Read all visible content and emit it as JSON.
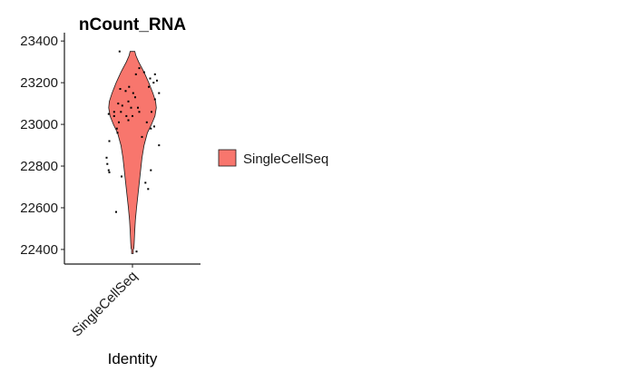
{
  "chart_data": {
    "type": "violin",
    "title": "nCount_RNA",
    "xlabel": "Identity",
    "ylabel": "",
    "categories": [
      "SingleCellSeq"
    ],
    "yticks": [
      22400,
      22600,
      22800,
      23000,
      23200,
      23400
    ],
    "ylim": [
      22330,
      23440
    ],
    "fill_color": "#F8766D",
    "legend": {
      "placement": "right",
      "entries": [
        "SingleCellSeq"
      ]
    },
    "grid": false,
    "violin_profile": [
      {
        "y": 22380,
        "w": 0.012
      },
      {
        "y": 22395,
        "w": 0.012
      },
      {
        "y": 22400,
        "w": 0.012
      },
      {
        "y": 22405,
        "w": 0.02
      },
      {
        "y": 22430,
        "w": 0.026
      },
      {
        "y": 22480,
        "w": 0.032
      },
      {
        "y": 22540,
        "w": 0.042
      },
      {
        "y": 22600,
        "w": 0.06
      },
      {
        "y": 22660,
        "w": 0.08
      },
      {
        "y": 22720,
        "w": 0.1
      },
      {
        "y": 22780,
        "w": 0.12
      },
      {
        "y": 22840,
        "w": 0.14
      },
      {
        "y": 22900,
        "w": 0.17
      },
      {
        "y": 22960,
        "w": 0.22
      },
      {
        "y": 23000,
        "w": 0.28
      },
      {
        "y": 23040,
        "w": 0.33
      },
      {
        "y": 23080,
        "w": 0.35
      },
      {
        "y": 23110,
        "w": 0.34
      },
      {
        "y": 23150,
        "w": 0.3
      },
      {
        "y": 23200,
        "w": 0.24
      },
      {
        "y": 23250,
        "w": 0.17
      },
      {
        "y": 23300,
        "w": 0.09
      },
      {
        "y": 23330,
        "w": 0.05
      },
      {
        "y": 23350,
        "w": 0.035
      }
    ],
    "points": [
      {
        "x": -0.19,
        "y": 23350
      },
      {
        "x": 0.1,
        "y": 23270
      },
      {
        "x": 0.17,
        "y": 23250
      },
      {
        "x": 0.05,
        "y": 23240
      },
      {
        "x": 0.33,
        "y": 23240
      },
      {
        "x": 0.26,
        "y": 23220
      },
      {
        "x": 0.31,
        "y": 23200
      },
      {
        "x": 0.36,
        "y": 23210
      },
      {
        "x": -0.05,
        "y": 23180
      },
      {
        "x": 0.24,
        "y": 23180
      },
      {
        "x": -0.18,
        "y": 23170
      },
      {
        "x": -0.1,
        "y": 23160
      },
      {
        "x": 0.01,
        "y": 23150
      },
      {
        "x": 0.04,
        "y": 23130
      },
      {
        "x": 0.39,
        "y": 23150
      },
      {
        "x": 0.33,
        "y": 23120
      },
      {
        "x": -0.06,
        "y": 23110
      },
      {
        "x": -0.21,
        "y": 23100
      },
      {
        "x": -0.15,
        "y": 23090
      },
      {
        "x": -0.02,
        "y": 23080
      },
      {
        "x": 0.08,
        "y": 23080
      },
      {
        "x": 0.1,
        "y": 23060
      },
      {
        "x": 0.28,
        "y": 23060
      },
      {
        "x": -0.27,
        "y": 23060
      },
      {
        "x": -0.17,
        "y": 23060
      },
      {
        "x": -0.35,
        "y": 23050
      },
      {
        "x": -0.27,
        "y": 23040
      },
      {
        "x": -0.09,
        "y": 23040
      },
      {
        "x": 0.0,
        "y": 23040
      },
      {
        "x": -0.06,
        "y": 23020
      },
      {
        "x": -0.2,
        "y": 23010
      },
      {
        "x": 0.21,
        "y": 23010
      },
      {
        "x": -0.23,
        "y": 22980
      },
      {
        "x": -0.22,
        "y": 22960
      },
      {
        "x": 0.32,
        "y": 22990
      },
      {
        "x": 0.27,
        "y": 22980
      },
      {
        "x": -0.34,
        "y": 22920
      },
      {
        "x": 0.14,
        "y": 22940
      },
      {
        "x": 0.39,
        "y": 22900
      },
      {
        "x": -0.38,
        "y": 22840
      },
      {
        "x": -0.37,
        "y": 22810
      },
      {
        "x": -0.35,
        "y": 22780
      },
      {
        "x": -0.34,
        "y": 22770
      },
      {
        "x": 0.27,
        "y": 22780
      },
      {
        "x": -0.16,
        "y": 22750
      },
      {
        "x": 0.19,
        "y": 22720
      },
      {
        "x": 0.23,
        "y": 22690
      },
      {
        "x": -0.24,
        "y": 22580
      },
      {
        "x": 0.06,
        "y": 22390
      }
    ]
  }
}
